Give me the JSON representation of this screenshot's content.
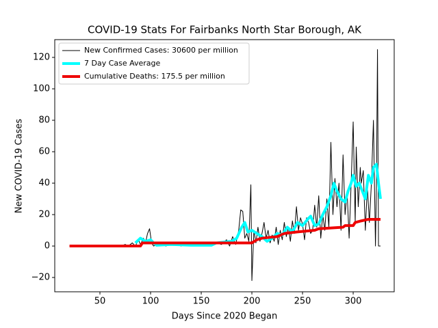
{
  "chart_data": {
    "type": "line",
    "title": "COVID-19 Stats For Fairbanks North Star Borough, AK",
    "xlabel": "Days Since 2020 Began",
    "ylabel": "New COVID-19 Cases",
    "xlim": [
      5.4,
      340.5
    ],
    "ylim": [
      -29.1,
      131.3
    ],
    "xticks": [
      50,
      100,
      150,
      200,
      250,
      300
    ],
    "yticks": [
      {
        "value": -20,
        "label": "−20"
      },
      0,
      20,
      40,
      60,
      80,
      100,
      120
    ],
    "legend": "upper left",
    "series": [
      {
        "name": "New Confirmed Cases: 30600 per million",
        "color": "#000000",
        "width": 1,
        "x": [
          20,
          70,
          75,
          78,
          82,
          85,
          88,
          90,
          93,
          95,
          97,
          99,
          101,
          103,
          106,
          110,
          115,
          120,
          125,
          130,
          135,
          140,
          145,
          150,
          155,
          160,
          165,
          170,
          175,
          178,
          181,
          184,
          187,
          189,
          191,
          193,
          195,
          197,
          199,
          200,
          202,
          204,
          206,
          208,
          210,
          212,
          214,
          216,
          218,
          220,
          222,
          224,
          226,
          228,
          230,
          232,
          234,
          236,
          238,
          240,
          242,
          244,
          246,
          248,
          250,
          252,
          254,
          256,
          258,
          260,
          262,
          264,
          266,
          268,
          270,
          272,
          274,
          276,
          278,
          280,
          282,
          284,
          286,
          288,
          290,
          292,
          294,
          296,
          298,
          300,
          302,
          303,
          305,
          307,
          308,
          310,
          312,
          314,
          316,
          318,
          320,
          322,
          323,
          324,
          325,
          327
        ],
        "values": [
          0,
          0,
          1,
          0,
          2,
          0,
          4,
          1,
          5,
          2,
          8,
          11,
          2,
          0,
          1,
          2,
          0,
          1,
          2,
          0,
          1,
          0,
          1,
          0,
          1,
          0,
          2,
          1,
          4,
          0,
          6,
          1,
          10,
          23,
          22,
          5,
          8,
          3,
          39,
          -22,
          10,
          2,
          12,
          3,
          8,
          15,
          5,
          10,
          2,
          7,
          3,
          12,
          1,
          10,
          4,
          15,
          6,
          12,
          3,
          16,
          8,
          25,
          10,
          18,
          14,
          4,
          18,
          15,
          8,
          10,
          26,
          12,
          32,
          5,
          20,
          10,
          30,
          12,
          66,
          20,
          43,
          25,
          40,
          10,
          58,
          20,
          35,
          5,
          40,
          79,
          15,
          63,
          25,
          50,
          40,
          48,
          10,
          38,
          15,
          40,
          80,
          0,
          40,
          125,
          0,
          0
        ]
      },
      {
        "name": "7 Day Case Average",
        "color": "#00ffff",
        "width": 4,
        "x": [
          85,
          90,
          95,
          100,
          103,
          106,
          120,
          140,
          160,
          165,
          180,
          185,
          190,
          193,
          196,
          200,
          205,
          210,
          215,
          220,
          225,
          230,
          235,
          240,
          245,
          250,
          255,
          258,
          262,
          266,
          270,
          274,
          278,
          281,
          284,
          288,
          292,
          295,
          298,
          300,
          303,
          306,
          309,
          312,
          315,
          318,
          320,
          323,
          325,
          327
        ],
        "values": [
          2,
          5,
          3,
          4,
          2,
          0.5,
          1,
          0.5,
          0.5,
          2,
          3,
          5,
          12,
          15,
          9,
          10,
          8,
          6,
          3,
          5,
          8,
          7,
          12,
          9,
          15,
          13,
          17,
          19,
          13,
          14,
          20,
          25,
          32,
          40,
          35,
          30,
          28,
          35,
          40,
          45,
          38,
          40,
          35,
          30,
          45,
          40,
          50,
          52,
          40,
          30
        ]
      },
      {
        "name": "Cumulative Deaths: 175.5 per million",
        "color": "#ee0000",
        "width": 4,
        "x": [
          20,
          90,
          92,
          195,
          200,
          205,
          210,
          225,
          232,
          245,
          262,
          266,
          290,
          292,
          300,
          302,
          308,
          315,
          327
        ],
        "values": [
          0,
          0,
          2,
          2,
          2,
          4,
          5,
          6,
          8,
          9,
          10,
          11,
          12,
          13,
          13,
          15,
          16,
          17,
          17
        ]
      }
    ]
  }
}
